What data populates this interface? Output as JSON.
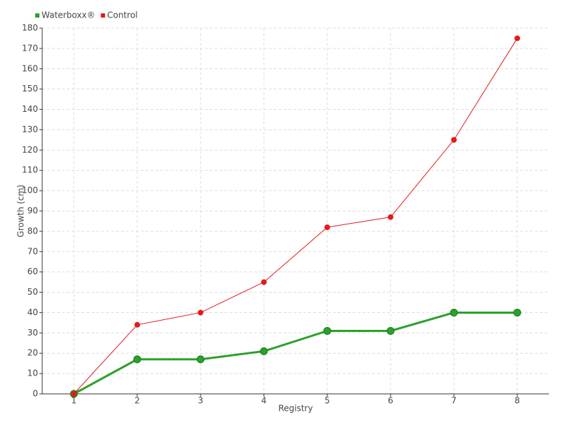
{
  "chart_data": {
    "type": "line",
    "categories": [
      "1",
      "2",
      "3",
      "4",
      "5",
      "6",
      "7",
      "8"
    ],
    "series": [
      {
        "name": "Waterboxx®",
        "color": "#2ca02c",
        "line_width": 3,
        "values": [
          0,
          17,
          17,
          21,
          31,
          31,
          40,
          40
        ]
      },
      {
        "name": "Control",
        "color": "#e31a1c",
        "line_width": 1,
        "values": [
          0,
          34,
          40,
          55,
          82,
          87,
          125,
          175
        ]
      }
    ],
    "x_label": "Registry",
    "y_label": "Growth (cm)",
    "ylim": [
      0,
      180
    ],
    "yticks": [
      0,
      10,
      20,
      30,
      40,
      50,
      60,
      70,
      80,
      90,
      100,
      110,
      120,
      130,
      140,
      150,
      160,
      170,
      180
    ],
    "grid": true,
    "legend": "top-left"
  }
}
